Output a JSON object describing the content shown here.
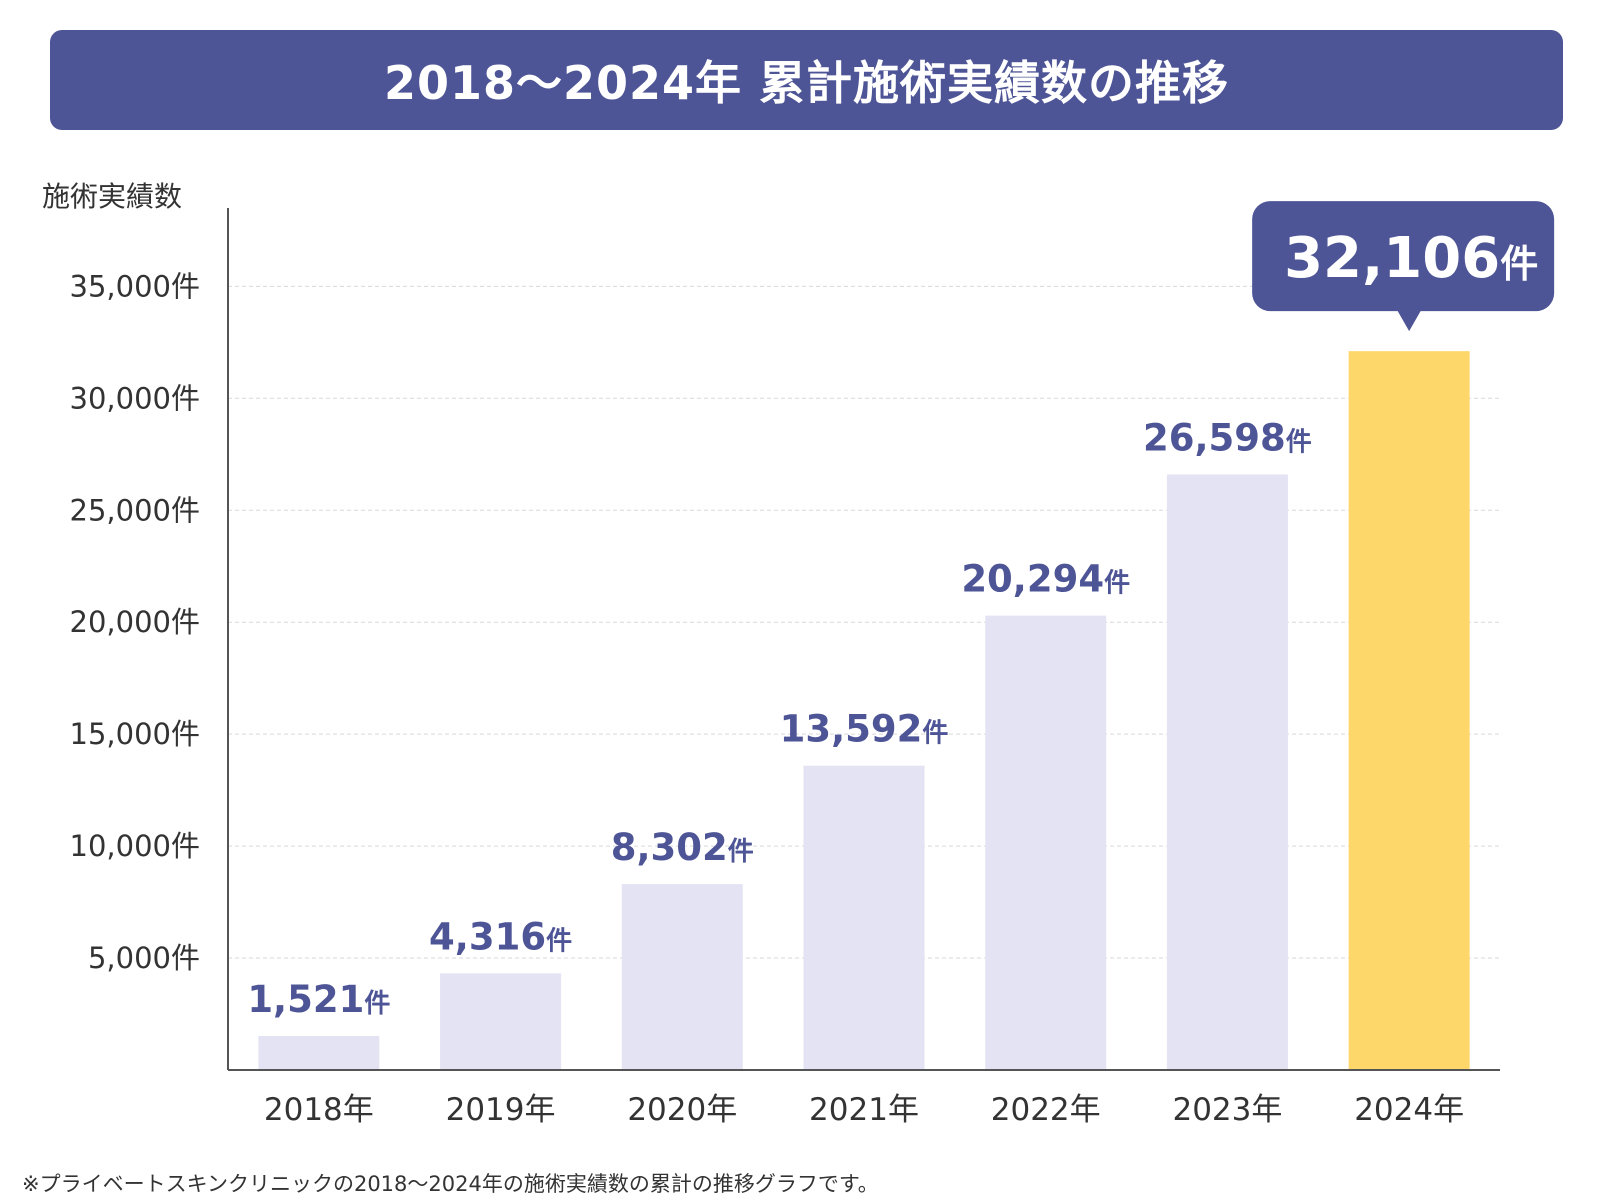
{
  "title": "2018〜2024年 累計施術実績数の推移",
  "footnote": "※プライベートスキンクリニックの2018〜2024年の施術実績数の累計の推移グラフです。",
  "colors": {
    "banner": "#4e5596",
    "bar": "#e4e3f3",
    "highlight_bar": "#fdd76a",
    "value_label": "#4e5596",
    "callout": "#4e5596"
  },
  "chart_data": {
    "type": "bar",
    "ylabel": "施術実績数",
    "xlabel": "",
    "ylim": [
      0,
      38500
    ],
    "y_ticks": [
      {
        "value": 5000,
        "label": "5,000件"
      },
      {
        "value": 10000,
        "label": "10,000件"
      },
      {
        "value": 15000,
        "label": "15,000件"
      },
      {
        "value": 20000,
        "label": "20,000件"
      },
      {
        "value": 25000,
        "label": "25,000件"
      },
      {
        "value": 30000,
        "label": "30,000件"
      },
      {
        "value": 35000,
        "label": "35,000件"
      }
    ],
    "grid": true,
    "categories": [
      "2018年",
      "2019年",
      "2020年",
      "2021年",
      "2022年",
      "2023年",
      "2024年"
    ],
    "values": [
      1521,
      4316,
      8302,
      13592,
      20294,
      26598,
      32106
    ],
    "value_labels": [
      "1,521",
      "4,316",
      "8,302",
      "13,592",
      "20,294",
      "26,598",
      "32,106"
    ],
    "unit": "件",
    "highlight_index": 6
  }
}
